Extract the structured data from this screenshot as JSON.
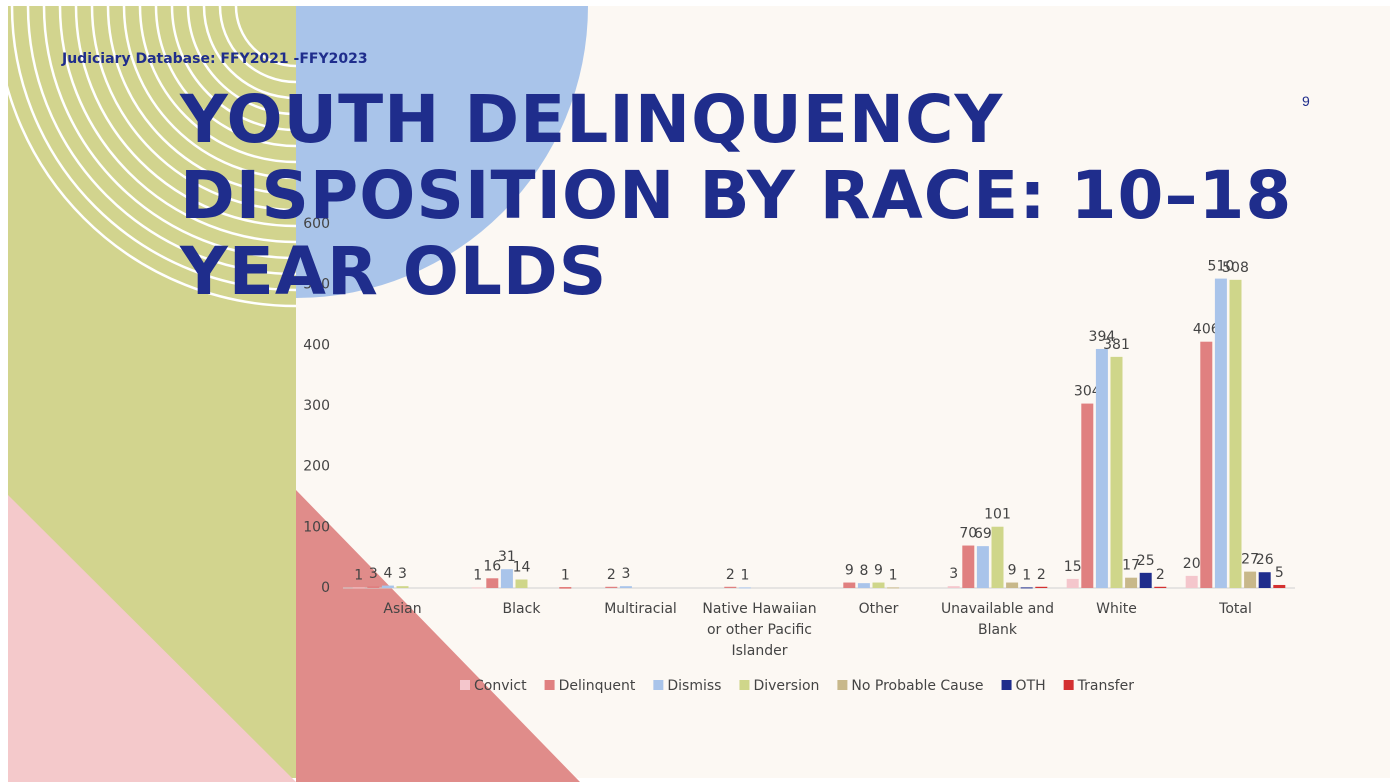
{
  "header": {
    "subtitle": "Judiciary Database: FFY2021 -FFY2023",
    "page_number": "9"
  },
  "chart_data": {
    "type": "bar",
    "title": "YOUTH DELINQUENCY DISPOSITION BY RACE: 10–18 YEAR OLDS",
    "categories": [
      "Asian",
      "Black",
      "Multiracial",
      "Native Hawaiian or other Pacific Islander",
      "Other",
      "Unavailable and Blank",
      "White",
      "Total"
    ],
    "series": [
      {
        "name": "Convict",
        "color": "#f4c6cc",
        "values": [
          1,
          1,
          null,
          null,
          null,
          3,
          15,
          20
        ]
      },
      {
        "name": "Delinquent",
        "color": "#e08080",
        "values": [
          3,
          16,
          2,
          2,
          9,
          70,
          304,
          406
        ]
      },
      {
        "name": "Dismiss",
        "color": "#a9c4ea",
        "values": [
          4,
          31,
          3,
          1,
          8,
          69,
          394,
          510
        ]
      },
      {
        "name": "Diversion",
        "color": "#cfd68a",
        "values": [
          3,
          14,
          null,
          null,
          9,
          101,
          381,
          508
        ]
      },
      {
        "name": "No Probable Cause",
        "color": "#c8b88a",
        "values": [
          null,
          null,
          null,
          null,
          1,
          9,
          17,
          27
        ]
      },
      {
        "name": "OTH",
        "color": "#1f2d8c",
        "values": [
          null,
          null,
          null,
          null,
          null,
          1,
          25,
          26
        ]
      },
      {
        "name": "Transfer",
        "color": "#d43030",
        "values": [
          null,
          1,
          null,
          null,
          null,
          2,
          2,
          5
        ]
      }
    ],
    "ylim": [
      0,
      600
    ],
    "yticks": [
      0,
      100,
      200,
      300,
      400,
      500,
      600
    ],
    "grid": false,
    "legend": "bottom"
  }
}
